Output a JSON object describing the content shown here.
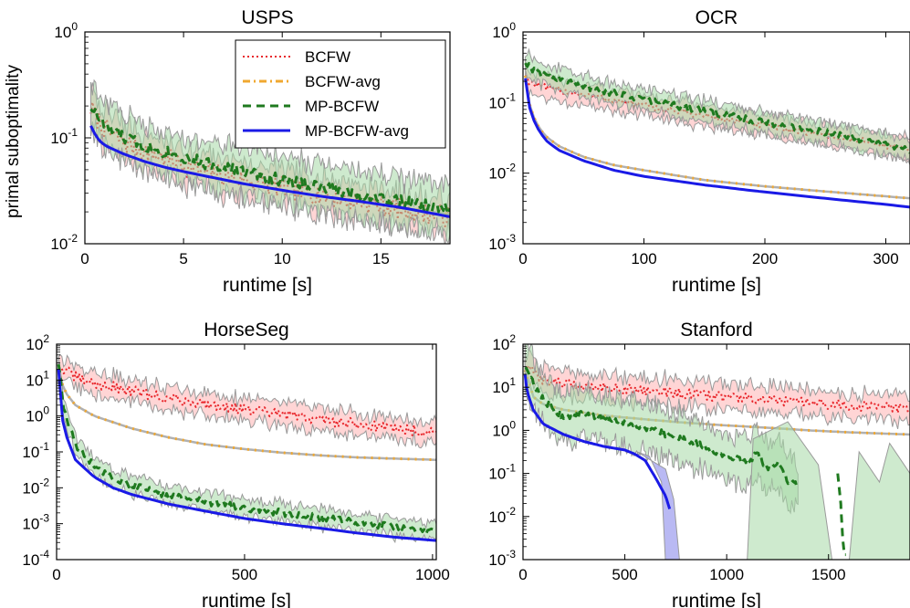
{
  "figure": {
    "ylabel": "primal suboptimality",
    "legend_entries": [
      "BCFW",
      "BCFW-avg",
      "MP-BCFW",
      "MP-BCFW-avg"
    ]
  },
  "colors": {
    "BCFW": "#e8262b",
    "BCFW-avg": "#f0a830",
    "MP-BCFW": "#1f7a1f",
    "MP-BCFW-avg": "#1a1ae6",
    "band_red": "#ffb3b3",
    "band_green": "#a5d8a5",
    "band_blue": "#a8a8f0",
    "band_gray": "#9a9a9a"
  },
  "chart_data": [
    {
      "type": "line",
      "title": "USPS",
      "xlabel": "runtime [s]",
      "ylabel": "primal suboptimality",
      "yscale": "log",
      "xlim": [
        0,
        18.5
      ],
      "ylim_exp": [
        -2,
        0
      ],
      "xticks": [
        0,
        5,
        10,
        15
      ],
      "legend": "top-right",
      "series": [
        {
          "name": "BCFW",
          "x": [
            0.3,
            1,
            2,
            3,
            4,
            5,
            6,
            8,
            10,
            12,
            14,
            16,
            18.5
          ],
          "y": [
            0.19,
            0.12,
            0.09,
            0.075,
            0.065,
            0.055,
            0.048,
            0.04,
            0.034,
            0.029,
            0.025,
            0.021,
            0.018
          ],
          "noise": 0.1,
          "band": 0.16
        },
        {
          "name": "BCFW-avg",
          "x": [
            0.3,
            0.6,
            1,
            2,
            3,
            4,
            5,
            6,
            8,
            10,
            12,
            14,
            16,
            18.5
          ],
          "y": [
            0.13,
            0.1,
            0.085,
            0.07,
            0.06,
            0.053,
            0.048,
            0.044,
            0.037,
            0.032,
            0.028,
            0.025,
            0.022,
            0.019
          ]
        },
        {
          "name": "MP-BCFW",
          "x": [
            0.3,
            1,
            2,
            3,
            4,
            5,
            6,
            8,
            10,
            12,
            14,
            16,
            18.5
          ],
          "y": [
            0.2,
            0.13,
            0.1,
            0.085,
            0.075,
            0.065,
            0.058,
            0.048,
            0.04,
            0.034,
            0.029,
            0.025,
            0.021
          ],
          "noise": 0.06,
          "band": 0.22
        },
        {
          "name": "MP-BCFW-avg",
          "x": [
            0.3,
            0.6,
            1,
            2,
            3,
            4,
            5,
            6,
            8,
            10,
            12,
            14,
            16,
            18.5
          ],
          "y": [
            0.13,
            0.1,
            0.085,
            0.07,
            0.06,
            0.053,
            0.048,
            0.044,
            0.037,
            0.032,
            0.028,
            0.025,
            0.022,
            0.018
          ]
        }
      ]
    },
    {
      "type": "line",
      "title": "OCR",
      "xlabel": "runtime [s]",
      "yscale": "log",
      "xlim": [
        0,
        320
      ],
      "ylim_exp": [
        -3,
        0
      ],
      "xticks": [
        0,
        100,
        200,
        300
      ],
      "series": [
        {
          "name": "BCFW",
          "x": [
            2,
            5,
            10,
            20,
            50,
            100,
            150,
            200,
            250,
            300,
            320
          ],
          "y": [
            0.25,
            0.2,
            0.18,
            0.16,
            0.13,
            0.09,
            0.065,
            0.047,
            0.035,
            0.025,
            0.022
          ],
          "noise": 0.05,
          "band": 0.15
        },
        {
          "name": "BCFW-avg",
          "x": [
            2,
            5,
            10,
            15,
            20,
            30,
            50,
            75,
            100,
            150,
            200,
            250,
            300,
            320
          ],
          "y": [
            0.24,
            0.1,
            0.055,
            0.04,
            0.032,
            0.024,
            0.017,
            0.013,
            0.011,
            0.008,
            0.0065,
            0.0055,
            0.0047,
            0.0044
          ]
        },
        {
          "name": "MP-BCFW",
          "x": [
            2,
            5,
            10,
            20,
            50,
            100,
            150,
            200,
            250,
            300,
            320
          ],
          "y": [
            0.38,
            0.33,
            0.28,
            0.24,
            0.17,
            0.11,
            0.075,
            0.052,
            0.038,
            0.025,
            0.021
          ],
          "noise": 0.05,
          "band": 0.15
        },
        {
          "name": "MP-BCFW-avg",
          "x": [
            2,
            5,
            10,
            15,
            20,
            30,
            50,
            75,
            100,
            150,
            200,
            250,
            300,
            320
          ],
          "y": [
            0.22,
            0.09,
            0.05,
            0.036,
            0.028,
            0.021,
            0.015,
            0.011,
            0.009,
            0.0068,
            0.0054,
            0.0044,
            0.0036,
            0.0033
          ]
        }
      ]
    },
    {
      "type": "line",
      "title": "HorseSeg",
      "xlabel": "runtime [s]",
      "yscale": "log",
      "xlim": [
        0,
        1010
      ],
      "ylim_exp": [
        -4,
        2
      ],
      "xticks": [
        0,
        500,
        1000
      ],
      "series": [
        {
          "name": "BCFW",
          "x": [
            5,
            50,
            100,
            200,
            300,
            400,
            500,
            600,
            700,
            800,
            900,
            1010
          ],
          "y": [
            25,
            12,
            8,
            5,
            3,
            2.2,
            1.5,
            1.1,
            0.8,
            0.6,
            0.45,
            0.35
          ],
          "noise": 0.15,
          "band": 0.3
        },
        {
          "name": "BCFW-avg",
          "x": [
            5,
            20,
            50,
            100,
            200,
            300,
            400,
            500,
            600,
            700,
            800,
            900,
            1010
          ],
          "y": [
            20,
            5,
            2,
            1,
            0.45,
            0.25,
            0.16,
            0.12,
            0.095,
            0.08,
            0.07,
            0.065,
            0.06
          ]
        },
        {
          "name": "MP-BCFW",
          "x": [
            5,
            20,
            50,
            100,
            150,
            200,
            300,
            400,
            500,
            600,
            700,
            800,
            900,
            1010
          ],
          "y": [
            30,
            1.5,
            0.15,
            0.04,
            0.02,
            0.012,
            0.006,
            0.004,
            0.0028,
            0.002,
            0.0015,
            0.0011,
            0.0008,
            0.0006
          ],
          "noise": 0.1,
          "band": 0.25
        },
        {
          "name": "MP-BCFW-avg",
          "x": [
            5,
            10,
            20,
            50,
            100,
            150,
            200,
            300,
            400,
            500,
            600,
            700,
            800,
            900,
            1010
          ],
          "y": [
            20,
            2,
            0.4,
            0.06,
            0.02,
            0.01,
            0.0065,
            0.0035,
            0.0022,
            0.0014,
            0.001,
            0.00075,
            0.00055,
            0.00042,
            0.00034
          ]
        }
      ]
    },
    {
      "type": "line",
      "title": "Stanford",
      "xlabel": "runtime [s]",
      "yscale": "log",
      "xlim": [
        0,
        1900
      ],
      "ylim_exp": [
        -3,
        2
      ],
      "xticks": [
        0,
        500,
        1000,
        1500
      ],
      "series": [
        {
          "name": "BCFW",
          "x": [
            10,
            100,
            200,
            400,
            600,
            800,
            1000,
            1200,
            1400,
            1600,
            1900
          ],
          "y": [
            30,
            15,
            12,
            10,
            8.5,
            7,
            6,
            5,
            4.3,
            3.8,
            3.2
          ],
          "noise": 0.12,
          "band": 0.3
        },
        {
          "name": "BCFW-avg",
          "x": [
            10,
            50,
            100,
            200,
            400,
            600,
            800,
            1000,
            1200,
            1400,
            1600,
            1900
          ],
          "y": [
            25,
            6,
            4,
            3,
            2.2,
            1.8,
            1.5,
            1.3,
            1.15,
            1.0,
            0.9,
            0.8
          ]
        },
        {
          "name": "MP-BCFW",
          "x": [
            10,
            50,
            100,
            150,
            200,
            300,
            400,
            500,
            600,
            700,
            800,
            900,
            1000,
            1100,
            1150,
            1200,
            1250,
            1300,
            1350
          ],
          "y": [
            30,
            12,
            5,
            3,
            2,
            2.5,
            1.8,
            1.5,
            1.2,
            0.8,
            0.6,
            0.4,
            0.25,
            0.18,
            0.3,
            0.12,
            0.2,
            0.07,
            0.05
          ],
          "noise": 0.08,
          "band": 0.55
        },
        {
          "name": "MP-BCFW",
          "x": [
            1545,
            1560,
            1570,
            1578,
            1585
          ],
          "y": [
            0.1,
            0.02,
            0.003,
            0.0013,
            0.0013
          ]
        },
        {
          "name": "MP-BCFW-avg",
          "x": [
            10,
            20,
            50,
            100,
            200,
            300,
            400,
            500,
            550,
            600,
            650,
            700,
            720
          ],
          "y": [
            20,
            8,
            3,
            1.4,
            0.8,
            0.55,
            0.42,
            0.35,
            0.28,
            0.2,
            0.08,
            0.03,
            0.015
          ]
        }
      ]
    }
  ]
}
